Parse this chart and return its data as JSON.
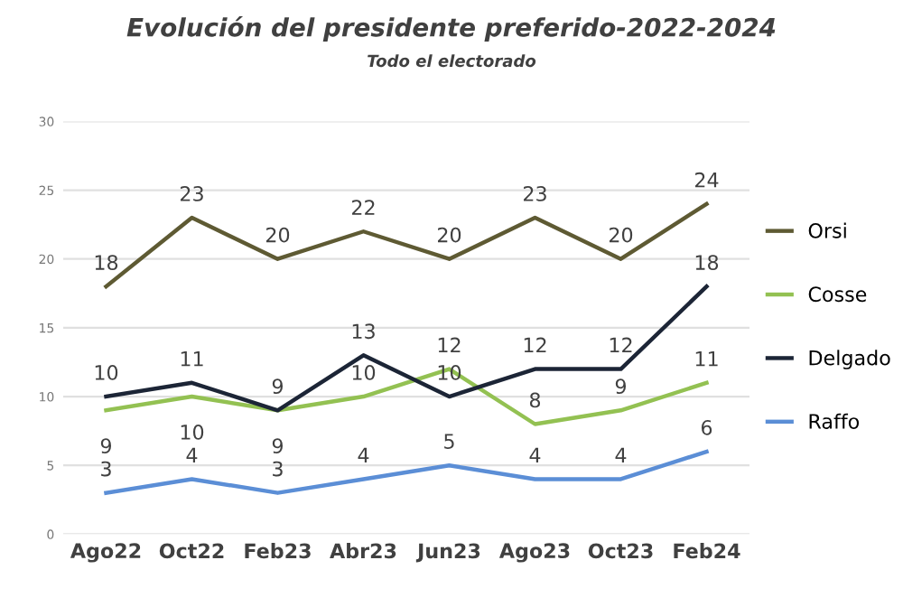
{
  "chart_data": {
    "type": "line",
    "title": "Evolución del presidente preferido-2022-2024",
    "subtitle": "Todo el electorado",
    "categories": [
      "Ago22",
      "Oct22",
      "Feb23",
      "Abr23",
      "Jun23",
      "Ago23",
      "Oct23",
      "Feb24"
    ],
    "series": [
      {
        "name": "Orsi",
        "color": "#5e5a33",
        "values": [
          18,
          23,
          20,
          22,
          20,
          23,
          20,
          24
        ]
      },
      {
        "name": "Cosse",
        "color": "#93c152",
        "values": [
          9,
          10,
          9,
          10,
          12,
          8,
          9,
          11
        ]
      },
      {
        "name": "Delgado",
        "color": "#1c2536",
        "values": [
          10,
          11,
          9,
          13,
          10,
          12,
          12,
          18
        ]
      },
      {
        "name": "Raffo",
        "color": "#5b8ed6",
        "values": [
          3,
          4,
          3,
          4,
          5,
          4,
          4,
          6
        ]
      }
    ],
    "ylim": [
      0,
      30
    ],
    "yticks": [
      0,
      5,
      10,
      15,
      20,
      25,
      30
    ],
    "grid": "y",
    "legend": "right",
    "data_labels": true,
    "marker": "none",
    "line_style": "solid"
  }
}
